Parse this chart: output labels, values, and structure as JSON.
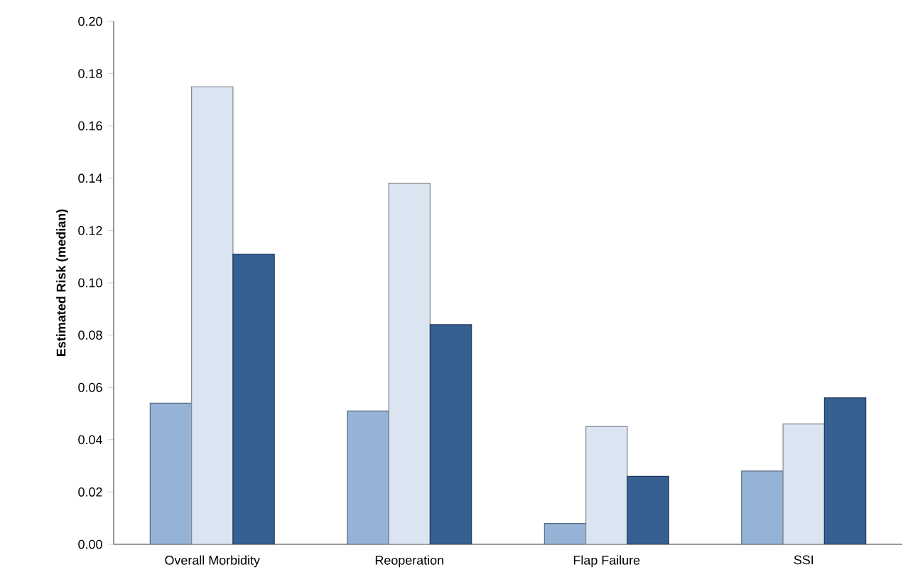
{
  "chart_data": {
    "type": "bar",
    "ylabel": "Estimated Risk (median)",
    "categories": [
      "Overall Morbidity",
      "Reoperation",
      "Flap Failure",
      "SSI"
    ],
    "series": [
      {
        "color": "#95b3d7",
        "values": [
          0.054,
          0.051,
          0.008,
          0.028
        ]
      },
      {
        "color": "#dbe5f1",
        "values": [
          0.175,
          0.138,
          0.045,
          0.046
        ]
      },
      {
        "color": "#376092",
        "values": [
          0.111,
          0.084,
          0.026,
          0.056
        ]
      }
    ],
    "ylim": [
      0,
      0.2
    ],
    "yticks": [
      {
        "value": 0,
        "label": "0.00"
      },
      {
        "value": 0.02,
        "label": "0.02"
      },
      {
        "value": 0.04,
        "label": "0.04"
      },
      {
        "value": 0.06,
        "label": "0.06"
      },
      {
        "value": 0.08,
        "label": "0.08"
      },
      {
        "value": 0.1,
        "label": "0.10"
      },
      {
        "value": 0.12,
        "label": "0.12"
      },
      {
        "value": 0.14,
        "label": "0.14"
      },
      {
        "value": 0.16,
        "label": "0.16"
      },
      {
        "value": 0.18,
        "label": "0.18"
      },
      {
        "value": 0.2,
        "label": "0.20"
      }
    ],
    "grid": false
  }
}
